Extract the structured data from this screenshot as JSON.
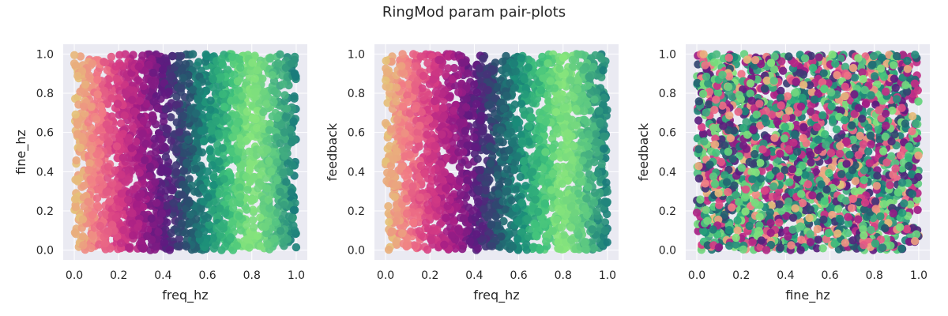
{
  "figure_title": "RingMod param pair-plots",
  "style": {
    "axes_bg": "#EAEAF2",
    "grid_color": "#FFFFFF",
    "text_color": "#262626",
    "colormap": [
      "#E5C17A",
      "#F27B86",
      "#D63C84",
      "#A21C86",
      "#5E1A80",
      "#29506E",
      "#1A8C79",
      "#3FC17C",
      "#88E57C",
      "#55C482",
      "#1A7C7B"
    ]
  },
  "chart_data": [
    {
      "type": "scatter",
      "xlabel": "freq_hz",
      "ylabel": "fine_hz",
      "xlim": [
        -0.05,
        1.05
      ],
      "ylim": [
        -0.05,
        1.05
      ],
      "xticks": [
        "0.0",
        "0.2",
        "0.4",
        "0.6",
        "0.8",
        "1.0"
      ],
      "yticks": [
        "0.0",
        "0.2",
        "0.4",
        "0.6",
        "0.8",
        "1.0"
      ],
      "x_domain": [
        0,
        1
      ],
      "y_domain": [
        0,
        1
      ],
      "color_by": "x",
      "grid": true
    },
    {
      "type": "scatter",
      "xlabel": "freq_hz",
      "ylabel": "feedback",
      "xlim": [
        -0.05,
        1.05
      ],
      "ylim": [
        -0.05,
        1.05
      ],
      "xticks": [
        "0.0",
        "0.2",
        "0.4",
        "0.6",
        "0.8",
        "1.0"
      ],
      "yticks": [
        "0.0",
        "0.2",
        "0.4",
        "0.6",
        "0.8",
        "1.0"
      ],
      "x_domain": [
        0,
        1
      ],
      "y_domain": [
        0,
        1
      ],
      "color_by": "x",
      "grid": true
    },
    {
      "type": "scatter",
      "xlabel": "fine_hz",
      "ylabel": "feedback",
      "xlim": [
        -0.05,
        1.05
      ],
      "ylim": [
        -0.05,
        1.05
      ],
      "xticks": [
        "0.0",
        "0.2",
        "0.4",
        "0.6",
        "0.8",
        "1.0"
      ],
      "yticks": [
        "0.0",
        "0.2",
        "0.4",
        "0.6",
        "0.8",
        "1.0"
      ],
      "x_domain": [
        0,
        1
      ],
      "y_domain": [
        0,
        1
      ],
      "color_by": "random",
      "grid": true
    }
  ]
}
